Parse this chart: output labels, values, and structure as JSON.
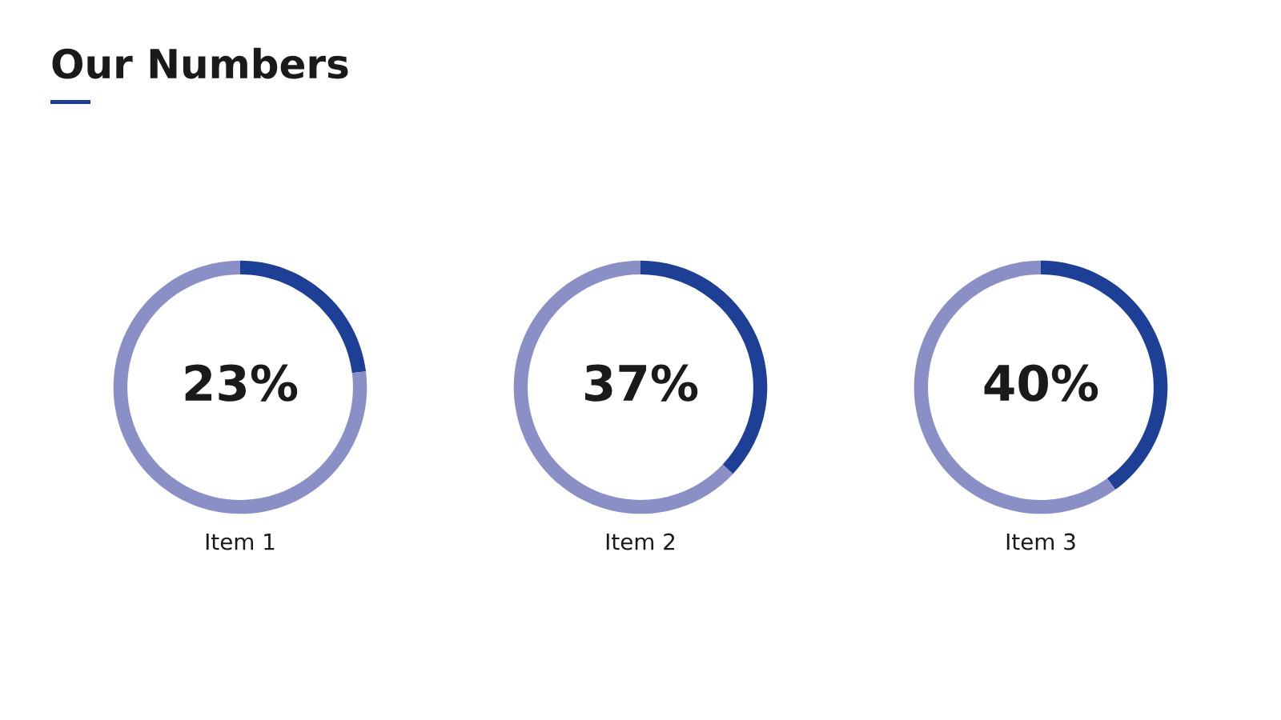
{
  "chart_data": [
    {
      "type": "donut",
      "title": "Our Numbers",
      "categories": [
        null,
        null
      ],
      "values": [
        23,
        77
      ],
      "colors": [
        "#1e3f96",
        "#8a8fc6"
      ],
      "value_labels": [
        "23%",
        null
      ],
      "xlabel": "Item 1"
    },
    {
      "type": "donut",
      "categories": [
        null,
        null
      ],
      "values": [
        37,
        63
      ],
      "colors": [
        "#1e3f96",
        "#8a8fc6"
      ],
      "value_labels": [
        "37%",
        null
      ],
      "xlabel": "Item 2"
    },
    {
      "type": "donut",
      "categories": [
        null,
        null
      ],
      "values": [
        40,
        60
      ],
      "colors": [
        "#1e3f96",
        "#8a8fc6"
      ],
      "value_labels": [
        "40%",
        null
      ],
      "xlabel": "Item 3"
    }
  ]
}
